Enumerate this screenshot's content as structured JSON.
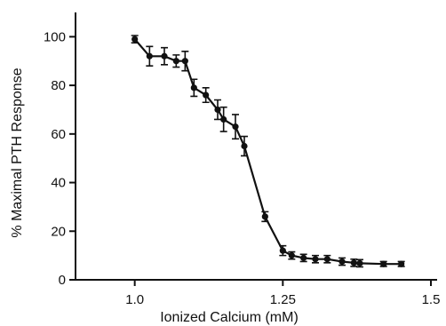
{
  "chart_data": {
    "type": "line",
    "xlabel": "Ionized Calcium (mM)",
    "ylabel": "% Maximal PTH Response",
    "xlim": [
      0.9,
      1.5
    ],
    "ylim": [
      0,
      110
    ],
    "x_ticks": [
      1.0,
      1.25,
      1.5
    ],
    "x_tick_labels": [
      "1.0",
      "1.25",
      "1.5"
    ],
    "y_ticks": [
      0,
      20,
      40,
      60,
      80,
      100
    ],
    "y_tick_labels": [
      "0",
      "20",
      "40",
      "60",
      "80",
      "100"
    ],
    "grid": false,
    "series": [
      {
        "points": [
          {
            "x": 1.0,
            "y": 99,
            "err": 1.5
          },
          {
            "x": 1.025,
            "y": 92,
            "err": 4
          },
          {
            "x": 1.05,
            "y": 92,
            "err": 3.5
          },
          {
            "x": 1.07,
            "y": 90,
            "err": 2.5
          },
          {
            "x": 1.085,
            "y": 90,
            "err": 4
          },
          {
            "x": 1.1,
            "y": 79,
            "err": 3.5
          },
          {
            "x": 1.12,
            "y": 76,
            "err": 3
          },
          {
            "x": 1.14,
            "y": 70,
            "err": 4
          },
          {
            "x": 1.15,
            "y": 66,
            "err": 5
          },
          {
            "x": 1.17,
            "y": 63,
            "err": 5
          },
          {
            "x": 1.185,
            "y": 55,
            "err": 4
          },
          {
            "x": 1.22,
            "y": 26,
            "err": 2
          },
          {
            "x": 1.25,
            "y": 12,
            "err": 2
          },
          {
            "x": 1.265,
            "y": 10,
            "err": 1.5
          },
          {
            "x": 1.285,
            "y": 9,
            "err": 1.5
          },
          {
            "x": 1.305,
            "y": 8.5,
            "err": 1.5
          },
          {
            "x": 1.325,
            "y": 8.5,
            "err": 1.5
          },
          {
            "x": 1.35,
            "y": 7.5,
            "err": 1.5
          },
          {
            "x": 1.37,
            "y": 7,
            "err": 1.5
          },
          {
            "x": 1.38,
            "y": 6.8,
            "err": 1.5
          },
          {
            "x": 1.42,
            "y": 6.5,
            "err": 1
          },
          {
            "x": 1.45,
            "y": 6.5,
            "err": 1
          }
        ]
      }
    ]
  }
}
